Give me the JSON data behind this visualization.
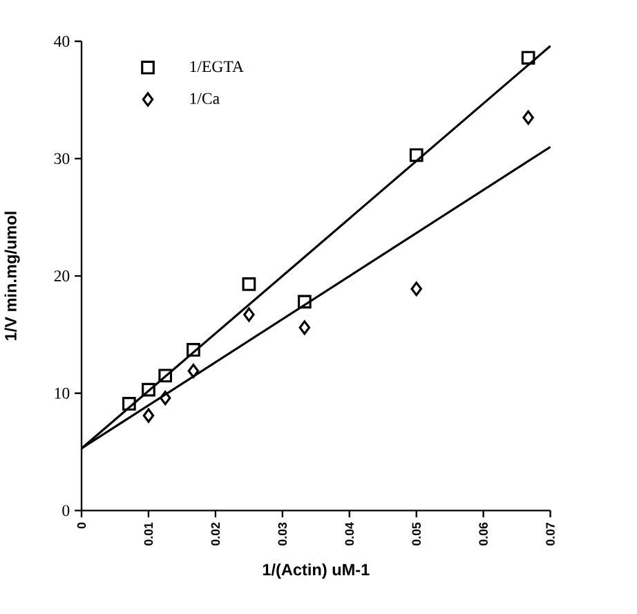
{
  "chart_data": {
    "type": "scatter",
    "xlabel": "1/(Actin) uM-1",
    "ylabel": "1/V min.mg/umol",
    "xlim": [
      0,
      0.07
    ],
    "ylim": [
      0,
      40
    ],
    "xticks": [
      0,
      0.01,
      0.02,
      0.03,
      0.04,
      0.05,
      0.06,
      0.07
    ],
    "yticks": [
      0,
      10,
      20,
      30,
      40
    ],
    "legend": "top left",
    "grid": false,
    "series": [
      {
        "name": "1/EGTA",
        "marker": "square",
        "color": "#000000",
        "x": [
          0.0071,
          0.01,
          0.0125,
          0.0167,
          0.025,
          0.0333,
          0.05,
          0.0667
        ],
        "values": [
          9.1,
          10.3,
          11.5,
          13.7,
          19.3,
          17.8,
          30.3,
          38.6
        ]
      },
      {
        "name": "1/Ca",
        "marker": "diamond",
        "color": "#000000",
        "x": [
          0.01,
          0.0125,
          0.0167,
          0.025,
          0.0333,
          0.05,
          0.0667
        ],
        "values": [
          8.1,
          9.6,
          11.9,
          16.7,
          15.6,
          18.9,
          33.5
        ]
      },
      {
        "type": "line",
        "marker": "none",
        "color": "#000000",
        "x": [
          0,
          0.07
        ],
        "values": [
          5.3,
          39.6
        ]
      },
      {
        "type": "line",
        "marker": "none",
        "color": "#000000",
        "x": [
          0,
          0.07
        ],
        "values": [
          5.3,
          31.0
        ]
      }
    ]
  }
}
